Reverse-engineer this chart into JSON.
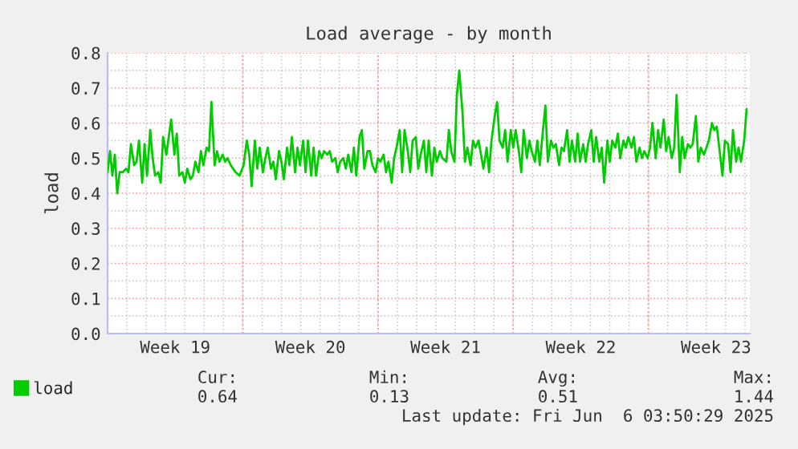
{
  "chart_data": {
    "type": "line",
    "title": "Load average - by month",
    "ylabel": "load",
    "x": [
      "2025-05-04T00:00",
      "2025-05-04T03:00",
      "2025-05-04T06:00",
      "2025-05-04T09:00",
      "2025-05-04T12:00",
      "2025-05-04T15:00",
      "2025-05-04T19:00",
      "2025-05-04T23:00",
      "2025-05-05T02:00",
      "2025-05-05T05:00",
      "2025-05-05T09:00",
      "2025-05-05T12:00",
      "2025-05-05T15:00",
      "2025-05-05T19:00",
      "2025-05-05T22:00",
      "2025-05-06T01:00",
      "2025-05-06T05:00",
      "2025-05-06T08:00",
      "2025-05-06T11:00",
      "2025-05-06T15:00",
      "2025-05-06T18:00",
      "2025-05-06T21:00",
      "2025-05-07T01:00",
      "2025-05-07T04:00",
      "2025-05-07T07:00",
      "2025-05-07T11:00",
      "2025-05-07T14:00",
      "2025-05-07T17:00",
      "2025-05-07T21:00",
      "2025-05-08T00:00",
      "2025-05-08T03:00",
      "2025-05-08T07:00",
      "2025-05-08T10:00",
      "2025-05-08T13:00",
      "2025-05-08T17:00",
      "2025-05-08T20:00",
      "2025-05-08T23:00",
      "2025-05-09T03:00",
      "2025-05-09T06:00",
      "2025-05-09T09:00",
      "2025-05-09T13:00",
      "2025-05-09T16:00",
      "2025-05-09T19:00",
      "2025-05-09T23:00",
      "2025-05-10T02:00",
      "2025-05-10T05:00",
      "2025-05-10T09:00",
      "2025-05-10T12:00",
      "2025-05-10T15:00",
      "2025-05-10T20:00",
      "2025-05-11T01:00",
      "2025-05-11T05:00",
      "2025-05-11T08:00",
      "2025-05-11T11:00",
      "2025-05-11T15:00",
      "2025-05-11T18:00",
      "2025-05-11T21:00",
      "2025-05-12T01:00",
      "2025-05-12T04:00",
      "2025-05-12T07:00",
      "2025-05-12T11:00",
      "2025-05-12T14:00",
      "2025-05-12T17:00",
      "2025-05-12T21:00",
      "2025-05-13T00:00",
      "2025-05-13T03:00",
      "2025-05-13T07:00",
      "2025-05-13T10:00",
      "2025-05-13T13:00",
      "2025-05-13T17:00",
      "2025-05-13T20:00",
      "2025-05-13T23:00",
      "2025-05-14T03:00",
      "2025-05-14T06:00",
      "2025-05-14T09:00",
      "2025-05-14T13:00",
      "2025-05-14T16:00",
      "2025-05-14T19:00",
      "2025-05-14T23:00",
      "2025-05-15T02:00",
      "2025-05-15T05:00",
      "2025-05-15T09:00",
      "2025-05-15T12:00",
      "2025-05-15T15:00",
      "2025-05-15T19:00",
      "2025-05-15T22:00",
      "2025-05-16T01:00",
      "2025-05-16T05:00",
      "2025-05-16T08:00",
      "2025-05-16T11:00",
      "2025-05-16T15:00",
      "2025-05-16T18:00",
      "2025-05-16T21:00",
      "2025-05-17T01:00",
      "2025-05-17T04:00",
      "2025-05-17T07:00",
      "2025-05-17T11:00",
      "2025-05-17T14:00",
      "2025-05-17T17:00",
      "2025-05-17T21:00",
      "2025-05-18T00:00",
      "2025-05-18T03:00",
      "2025-05-18T07:00",
      "2025-05-18T10:00",
      "2025-05-18T13:00",
      "2025-05-18T17:00",
      "2025-05-18T20:00",
      "2025-05-18T23:00",
      "2025-05-19T03:00",
      "2025-05-19T06:00",
      "2025-05-19T09:00",
      "2025-05-19T13:00",
      "2025-05-19T16:00",
      "2025-05-19T19:00",
      "2025-05-19T23:00",
      "2025-05-20T02:00",
      "2025-05-20T05:00",
      "2025-05-20T09:00",
      "2025-05-20T12:00",
      "2025-05-20T15:00",
      "2025-05-20T19:00",
      "2025-05-20T22:00",
      "2025-05-21T01:00",
      "2025-05-21T05:00",
      "2025-05-21T08:00",
      "2025-05-21T13:00",
      "2025-05-21T16:00",
      "2025-05-21T19:00",
      "2025-05-21T23:00",
      "2025-05-22T02:00",
      "2025-05-22T05:00",
      "2025-05-22T09:00",
      "2025-05-22T12:00",
      "2025-05-22T15:00",
      "2025-05-22T19:00",
      "2025-05-22T22:00",
      "2025-05-23T01:00",
      "2025-05-23T05:00",
      "2025-05-23T08:00",
      "2025-05-23T11:00",
      "2025-05-23T15:00",
      "2025-05-23T18:00",
      "2025-05-23T21:00",
      "2025-05-24T01:00",
      "2025-05-24T04:00",
      "2025-05-24T07:00",
      "2025-05-24T11:00",
      "2025-05-24T14:00",
      "2025-05-24T17:00",
      "2025-05-24T21:00",
      "2025-05-25T00:00",
      "2025-05-25T03:00",
      "2025-05-25T07:00",
      "2025-05-25T10:00",
      "2025-05-25T13:00",
      "2025-05-25T17:00",
      "2025-05-25T20:00",
      "2025-05-25T23:00",
      "2025-05-26T03:00",
      "2025-05-26T06:00",
      "2025-05-26T09:00",
      "2025-05-26T13:00",
      "2025-05-26T16:00",
      "2025-05-26T19:00",
      "2025-05-26T23:00",
      "2025-05-27T02:00",
      "2025-05-27T05:00",
      "2025-05-27T09:00",
      "2025-05-27T12:00",
      "2025-05-27T15:00",
      "2025-05-27T19:00",
      "2025-05-27T22:00",
      "2025-05-28T01:00",
      "2025-05-28T05:00",
      "2025-05-28T08:00",
      "2025-05-28T11:00",
      "2025-05-28T15:00",
      "2025-05-28T18:00",
      "2025-05-28T21:00",
      "2025-05-29T01:00",
      "2025-05-29T04:00",
      "2025-05-29T07:00",
      "2025-05-29T11:00",
      "2025-05-29T14:00",
      "2025-05-29T17:00",
      "2025-05-29T21:00",
      "2025-05-30T00:00",
      "2025-05-30T03:00",
      "2025-05-30T07:00",
      "2025-05-30T10:00",
      "2025-05-30T13:00",
      "2025-05-30T17:00",
      "2025-05-30T20:00",
      "2025-05-30T23:00",
      "2025-05-31T03:00",
      "2025-05-31T06:00",
      "2025-05-31T09:00",
      "2025-05-31T13:00",
      "2025-05-31T16:00",
      "2025-05-31T19:00",
      "2025-05-31T23:00",
      "2025-06-01T02:00",
      "2025-06-01T05:00",
      "2025-06-01T09:00",
      "2025-06-01T12:00",
      "2025-06-01T15:00",
      "2025-06-01T19:00",
      "2025-06-01T22:00",
      "2025-06-02T01:00",
      "2025-06-02T05:00",
      "2025-06-02T08:00",
      "2025-06-02T11:00",
      "2025-06-02T15:00",
      "2025-06-02T18:00",
      "2025-06-02T21:00",
      "2025-06-03T01:00",
      "2025-06-03T04:00",
      "2025-06-03T07:00",
      "2025-06-03T11:00",
      "2025-06-03T14:00",
      "2025-06-03T17:00",
      "2025-06-03T21:00",
      "2025-06-04T00:00",
      "2025-06-04T03:00",
      "2025-06-04T07:00",
      "2025-06-04T10:00",
      "2025-06-04T13:00",
      "2025-06-04T17:00",
      "2025-06-04T20:00",
      "2025-06-04T23:00",
      "2025-06-05T03:00",
      "2025-06-05T06:00",
      "2025-06-05T09:00",
      "2025-06-05T13:00",
      "2025-06-05T16:00",
      "2025-06-05T19:00",
      "2025-06-05T23:00",
      "2025-06-06T02:00"
    ],
    "series": [
      {
        "name": "load",
        "color": "#00cc00",
        "values": [
          0.46,
          0.52,
          0.45,
          0.51,
          0.4,
          0.46,
          0.46,
          0.47,
          0.46,
          0.54,
          0.48,
          0.49,
          0.55,
          0.43,
          0.54,
          0.45,
          0.58,
          0.5,
          0.45,
          0.46,
          0.43,
          0.56,
          0.51,
          0.56,
          0.61,
          0.51,
          0.57,
          0.45,
          0.46,
          0.43,
          0.47,
          0.44,
          0.45,
          0.49,
          0.46,
          0.52,
          0.48,
          0.53,
          0.52,
          0.66,
          0.48,
          0.52,
          0.49,
          0.51,
          0.49,
          0.5,
          0.48,
          0.47,
          0.46,
          0.45,
          0.48,
          0.55,
          0.51,
          0.42,
          0.55,
          0.47,
          0.53,
          0.46,
          0.5,
          0.53,
          0.47,
          0.49,
          0.44,
          0.52,
          0.49,
          0.44,
          0.53,
          0.48,
          0.56,
          0.46,
          0.53,
          0.48,
          0.55,
          0.46,
          0.55,
          0.45,
          0.53,
          0.45,
          0.52,
          0.5,
          0.52,
          0.51,
          0.52,
          0.49,
          0.5,
          0.46,
          0.49,
          0.5,
          0.47,
          0.51,
          0.46,
          0.53,
          0.45,
          0.56,
          0.58,
          0.47,
          0.52,
          0.52,
          0.48,
          0.46,
          0.5,
          0.49,
          0.51,
          0.46,
          0.49,
          0.43,
          0.5,
          0.53,
          0.58,
          0.46,
          0.58,
          0.52,
          0.46,
          0.55,
          0.56,
          0.47,
          0.51,
          0.55,
          0.46,
          0.55,
          0.45,
          0.53,
          0.49,
          0.52,
          0.5,
          0.49,
          0.58,
          0.52,
          0.49,
          0.68,
          0.75,
          0.63,
          0.49,
          0.53,
          0.48,
          0.55,
          0.53,
          0.55,
          0.51,
          0.47,
          0.53,
          0.46,
          0.55,
          0.62,
          0.66,
          0.55,
          0.53,
          0.58,
          0.49,
          0.58,
          0.53,
          0.58,
          0.52,
          0.46,
          0.58,
          0.5,
          0.55,
          0.52,
          0.49,
          0.55,
          0.48,
          0.58,
          0.65,
          0.49,
          0.55,
          0.53,
          0.54,
          0.48,
          0.53,
          0.52,
          0.58,
          0.49,
          0.55,
          0.49,
          0.57,
          0.49,
          0.54,
          0.49,
          0.54,
          0.58,
          0.49,
          0.56,
          0.49,
          0.53,
          0.43,
          0.55,
          0.49,
          0.55,
          0.53,
          0.57,
          0.5,
          0.55,
          0.53,
          0.56,
          0.53,
          0.56,
          0.49,
          0.53,
          0.5,
          0.52,
          0.5,
          0.53,
          0.6,
          0.5,
          0.58,
          0.53,
          0.61,
          0.52,
          0.56,
          0.5,
          0.53,
          0.68,
          0.46,
          0.56,
          0.5,
          0.54,
          0.53,
          0.54,
          0.62,
          0.49,
          0.53,
          0.51,
          0.53,
          0.55,
          0.6,
          0.58,
          0.59,
          0.51,
          0.45,
          0.55,
          0.54,
          0.46,
          0.58,
          0.49,
          0.53,
          0.49,
          0.55,
          0.64
        ]
      }
    ],
    "xlim": [
      "2025-05-04T00:00",
      "2025-06-06T06:00"
    ],
    "xticks": [
      {
        "value": "2025-05-07T12:00",
        "label": "Week 19"
      },
      {
        "value": "2025-05-14T12:00",
        "label": "Week 20"
      },
      {
        "value": "2025-05-21T12:00",
        "label": "Week 21"
      },
      {
        "value": "2025-05-28T12:00",
        "label": "Week 22"
      },
      {
        "value": "2025-06-04T12:00",
        "label": "Week 23"
      }
    ],
    "ylim": [
      0,
      0.8
    ],
    "yticks": [
      {
        "value": 0,
        "label": "0.0"
      },
      {
        "value": 0.1,
        "label": "0.1"
      },
      {
        "value": 0.2,
        "label": "0.2"
      },
      {
        "value": 0.3,
        "label": "0.3"
      },
      {
        "value": 0.4,
        "label": "0.4"
      },
      {
        "value": 0.5,
        "label": "0.5"
      },
      {
        "value": 0.6,
        "label": "0.6"
      },
      {
        "value": 0.7,
        "label": "0.7"
      },
      {
        "value": 0.8,
        "label": "0.8"
      }
    ],
    "ref_lines": [
      {
        "axis": "x",
        "value": "2025-05-11",
        "color": "#ff9999",
        "line_style": "dotted"
      },
      {
        "axis": "x",
        "value": "2025-05-18",
        "color": "#ff9999",
        "line_style": "dotted"
      },
      {
        "axis": "x",
        "value": "2025-05-25",
        "color": "#ff9999",
        "line_style": "dotted"
      },
      {
        "axis": "x",
        "value": "2025-06-01",
        "color": "#ff9999",
        "line_style": "dotted"
      }
    ],
    "grid": true,
    "legend": "bottom left",
    "annotations": [
      "Cur:",
      "Min:",
      "Avg:",
      "Max:",
      "0.64",
      "0.13",
      "0.51",
      "1.44",
      "Last update: Fri Jun  6 03:50:29 2025"
    ]
  }
}
